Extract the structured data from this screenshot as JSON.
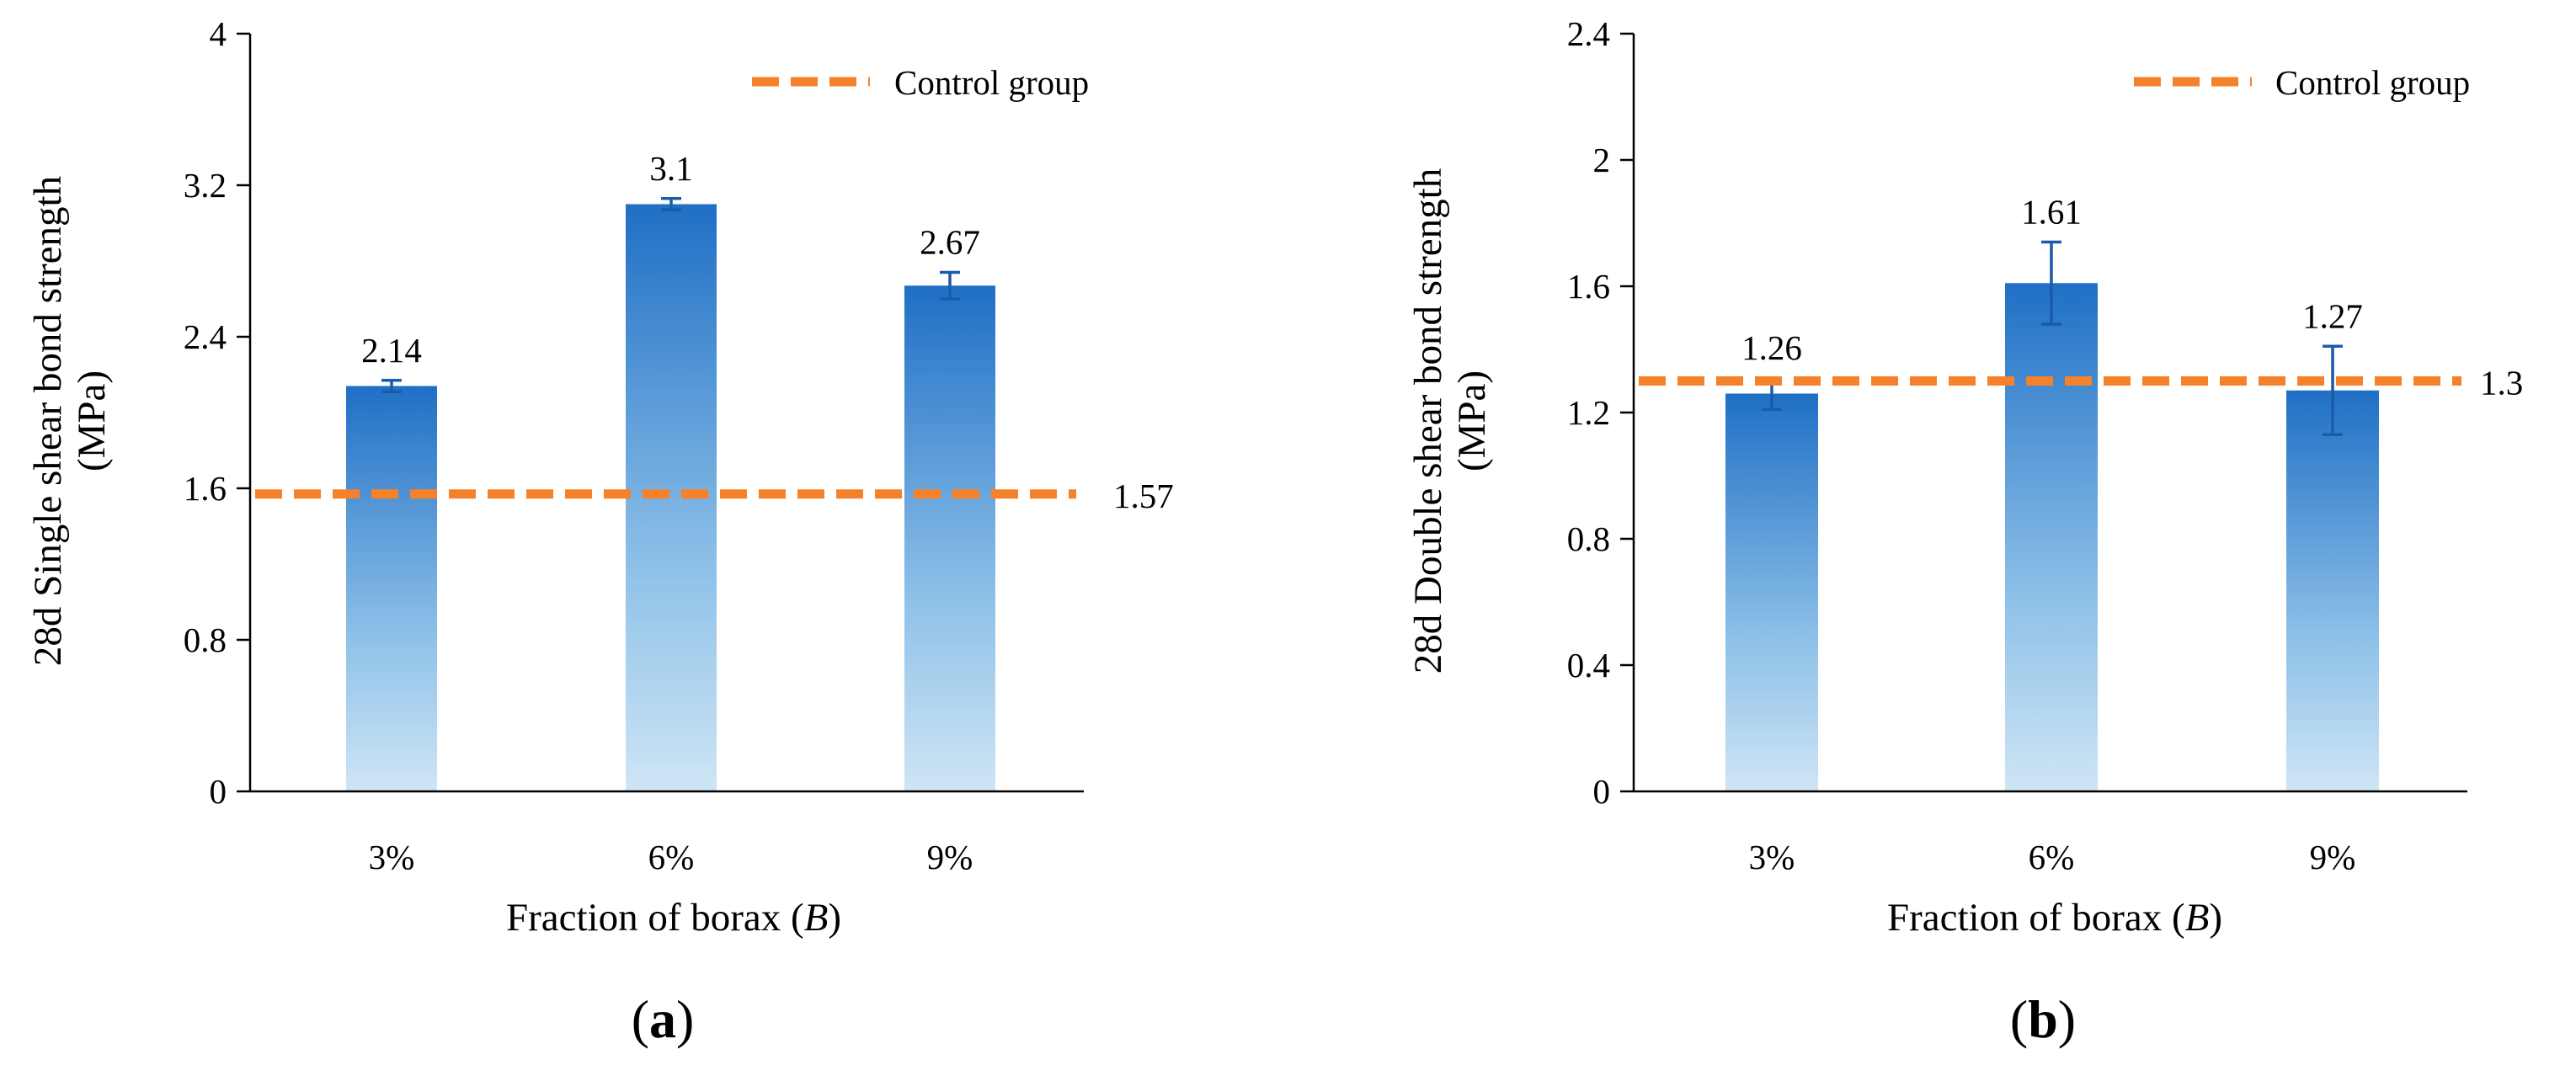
{
  "chart_data": [
    {
      "type": "bar",
      "panel": "a",
      "categories": [
        "3%",
        "6%",
        "9%"
      ],
      "values": [
        2.14,
        3.1,
        2.67
      ],
      "error": [
        0.03,
        0.03,
        0.07
      ],
      "data_labels": [
        "2.14",
        "3.1",
        "2.67"
      ],
      "ylim": [
        0,
        4
      ],
      "yticks": [
        0,
        0.8,
        1.6,
        2.4,
        3.2,
        4
      ],
      "ytick_labels": [
        "0",
        "0.8",
        "1.6",
        "2.4",
        "3.2",
        "4"
      ],
      "ylabel_line1": "28d Single  shear bond strength",
      "ylabel_line2": "(MPa)",
      "xlabel_prefix": "Fraction  of borax (",
      "xlabel_var": "B",
      "xlabel_suffix": ")",
      "control": {
        "value": 1.57,
        "label": "1.57",
        "legend": "Control group"
      },
      "legend_position": "top-right",
      "grid": false,
      "panel_open": "(",
      "panel_letter": "a",
      "panel_close": ")",
      "colors": {
        "bar_top": "#1f6fc5",
        "bar_mid": "#8ec1e8",
        "bar_bottom": "#cfe5f5",
        "control": "#f5822a",
        "error": "#1a5ca8"
      }
    },
    {
      "type": "bar",
      "panel": "b",
      "categories": [
        "3%",
        "6%",
        "9%"
      ],
      "values": [
        1.26,
        1.61,
        1.27
      ],
      "error": [
        0.05,
        0.13,
        0.14
      ],
      "data_labels": [
        "1.26",
        "1.61",
        "1.27"
      ],
      "ylim": [
        0,
        2.4
      ],
      "yticks": [
        0,
        0.4,
        0.8,
        1.2,
        1.6,
        2,
        2.4
      ],
      "ytick_labels": [
        "0",
        "0.4",
        "0.8",
        "1.2",
        "1.6",
        "2",
        "2.4"
      ],
      "ylabel_line1": "28d Double  shear bond strength",
      "ylabel_line2": "(MPa)",
      "xlabel_prefix": "Fraction  of borax (",
      "xlabel_var": "B",
      "xlabel_suffix": ")",
      "control": {
        "value": 1.3,
        "label": "1.3",
        "legend": "Control group"
      },
      "legend_position": "top-right",
      "grid": false,
      "panel_open": "(",
      "panel_letter": "b",
      "panel_close": ")",
      "colors": {
        "bar_top": "#1f6fc5",
        "bar_mid": "#8ec1e8",
        "bar_bottom": "#cfe5f5",
        "control": "#f5822a",
        "error": "#1a5ca8"
      }
    }
  ]
}
